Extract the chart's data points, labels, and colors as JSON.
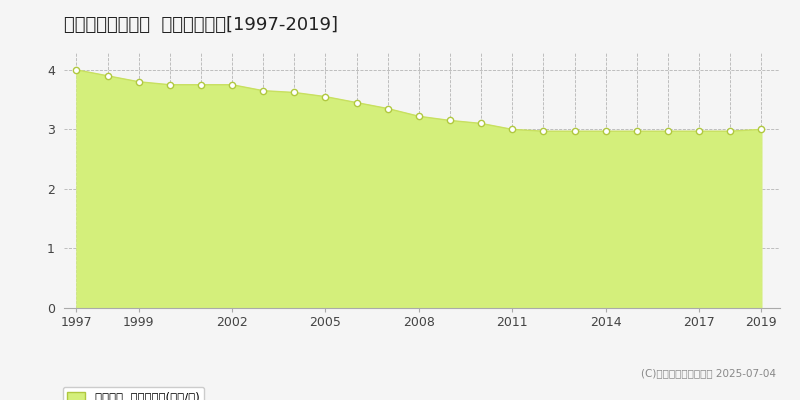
{
  "title": "紋別郡遠軽町南町  基準地価推移[1997-2019]",
  "years": [
    1997,
    1998,
    1999,
    2000,
    2001,
    2002,
    2003,
    2004,
    2005,
    2006,
    2007,
    2008,
    2009,
    2010,
    2011,
    2012,
    2013,
    2014,
    2015,
    2016,
    2017,
    2018,
    2019
  ],
  "values": [
    4.0,
    3.9,
    3.8,
    3.75,
    3.75,
    3.75,
    3.65,
    3.62,
    3.55,
    3.45,
    3.35,
    3.22,
    3.15,
    3.1,
    3.0,
    2.97,
    2.97,
    2.97,
    2.97,
    2.97,
    2.97,
    2.97,
    3.0
  ],
  "fill_color": "#d4ef7b",
  "line_color": "#c8e060",
  "marker_facecolor": "white",
  "marker_edgecolor": "#b0c840",
  "background_color": "#f5f5f5",
  "plot_bg_color": "#f5f5f5",
  "grid_color": "#999999",
  "title_fontsize": 13,
  "tick_fontsize": 9,
  "legend_label": "基準地価  平均坪単価(万円/坪)",
  "copyright_text": "(C)土地価格ドットコム 2025-07-04",
  "ylim": [
    0,
    4.3
  ],
  "yticks": [
    0,
    1,
    2,
    3,
    4
  ],
  "xticks": [
    1997,
    1999,
    2002,
    2005,
    2008,
    2011,
    2014,
    2017,
    2019
  ],
  "xlim": [
    1996.6,
    2019.6
  ]
}
